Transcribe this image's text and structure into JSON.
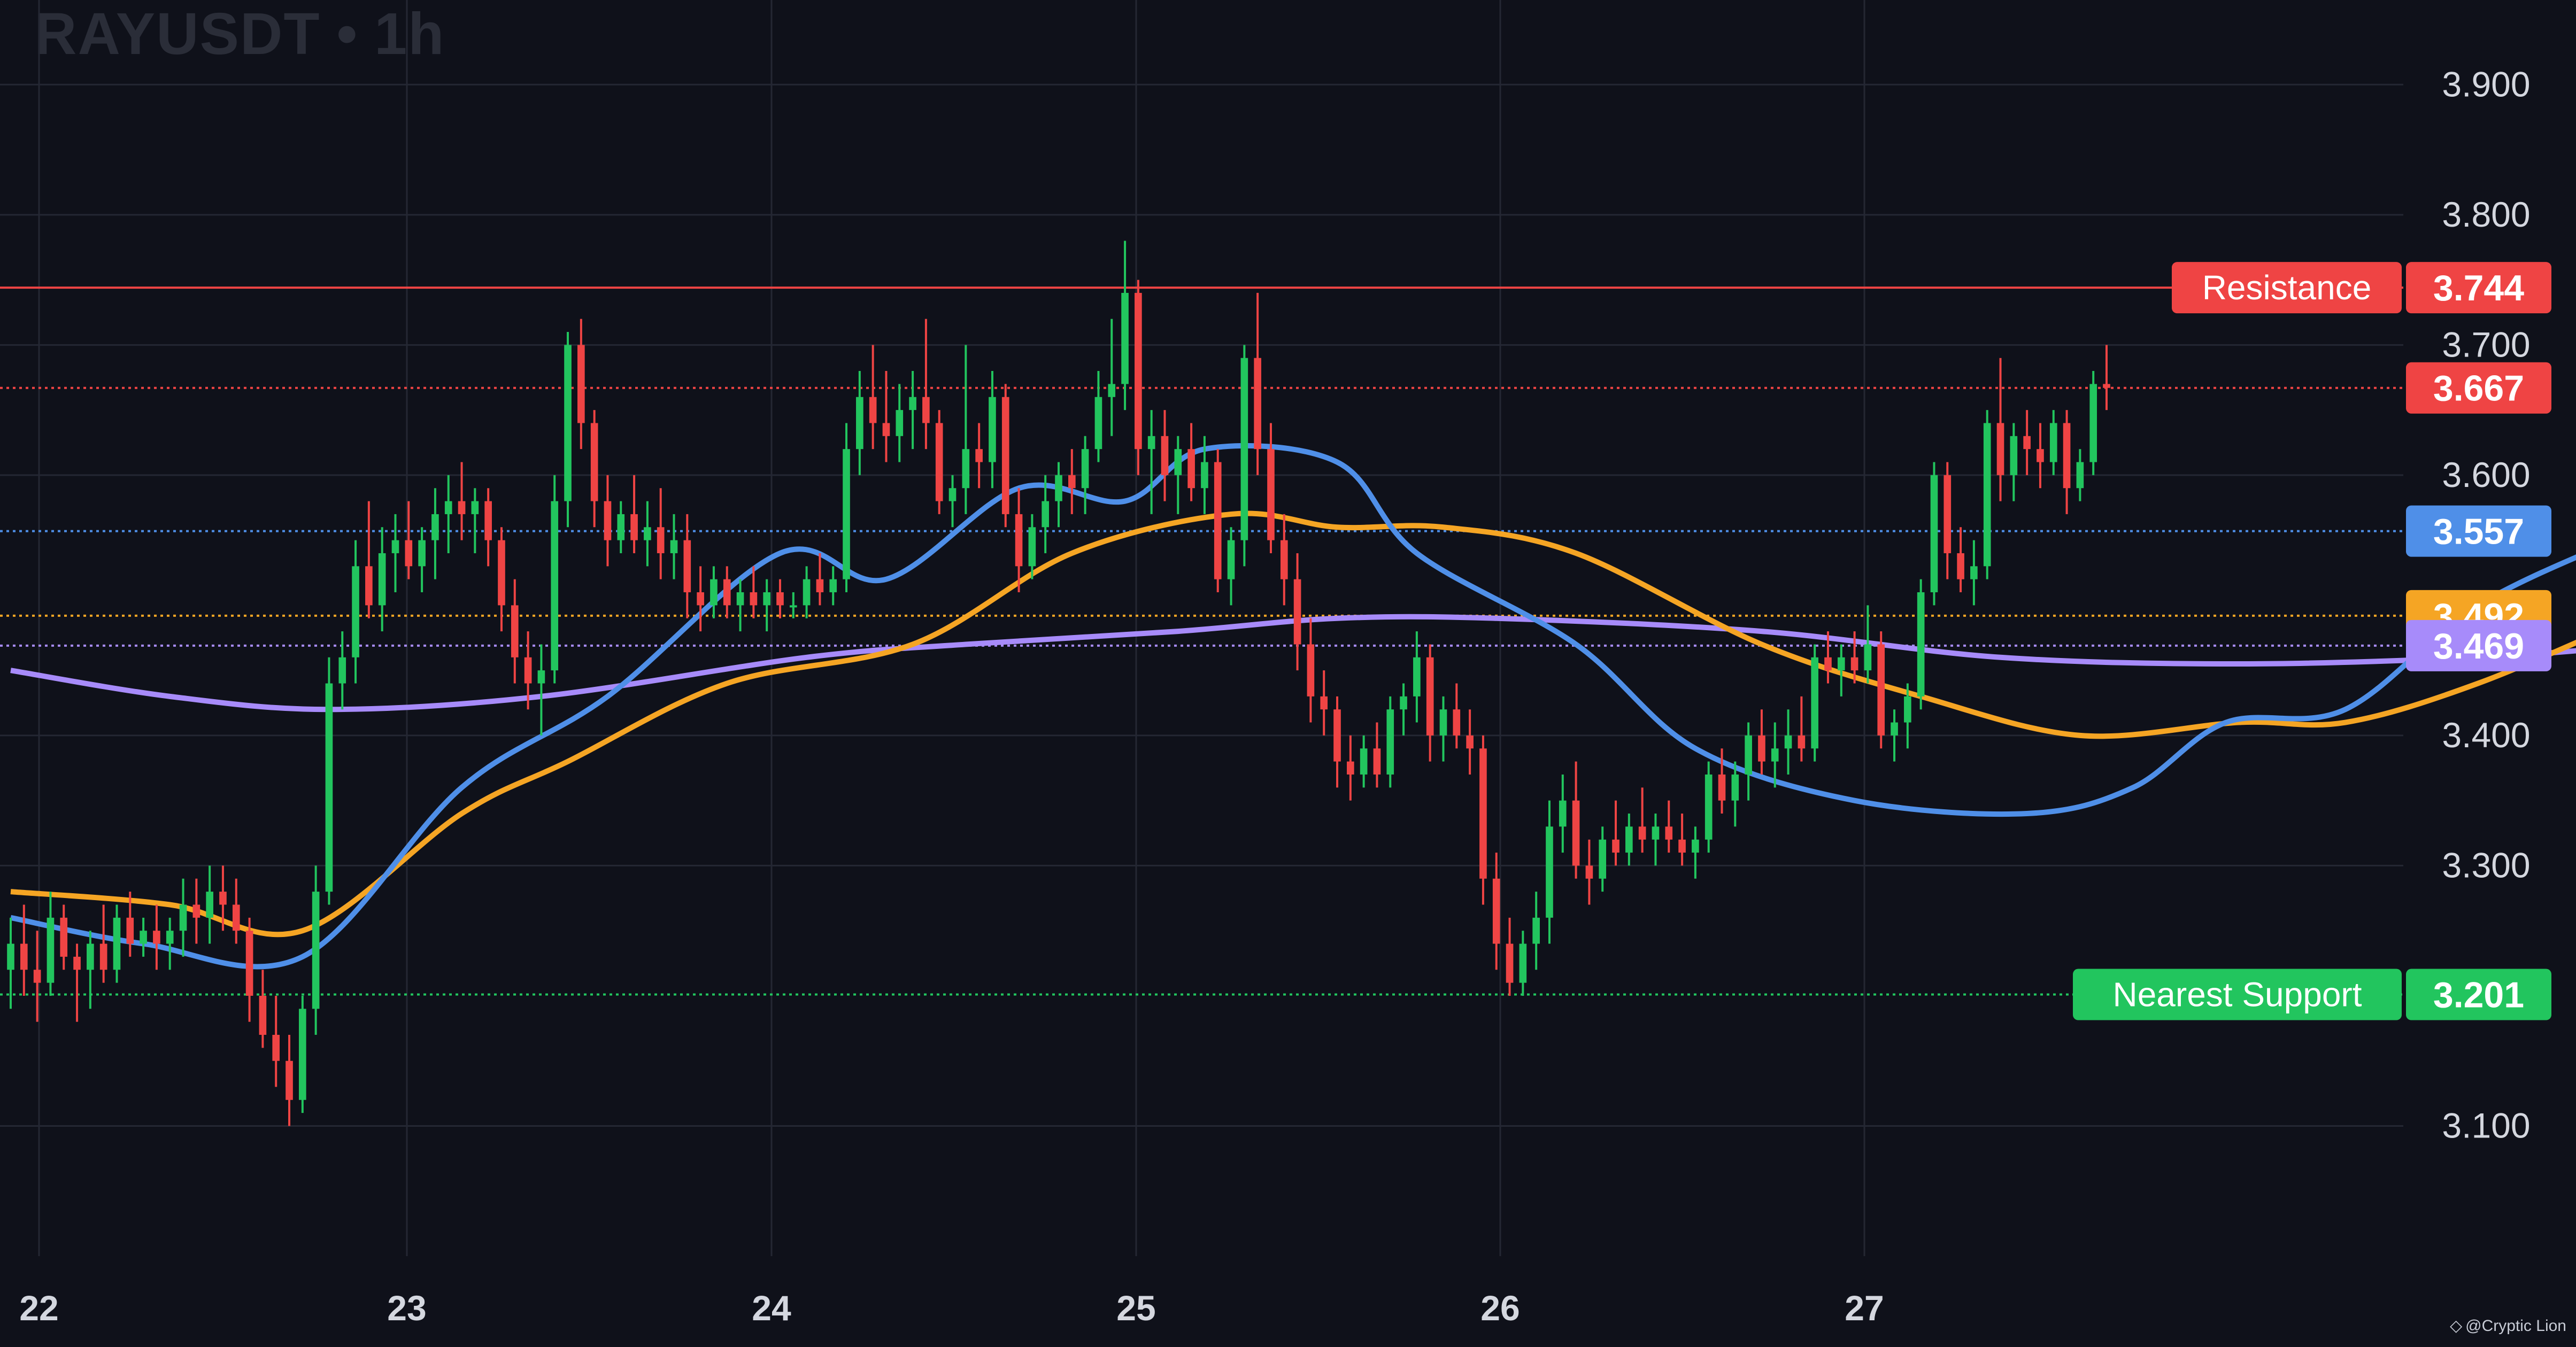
{
  "header": {
    "symbol": "RAYUSDT",
    "separator": "•",
    "interval": "1h"
  },
  "credit": {
    "icon": "tradingview-logo-icon",
    "text": "@Cryptic Lion"
  },
  "colors": {
    "background": "#0f111a",
    "grid": "#242733",
    "axis_text": "#d4d7df",
    "candle_up": "#22c55e",
    "candle_down": "#ef4444",
    "ma_fast": "#4f8fe8",
    "ma_mid": "#f5a524",
    "ma_slow": "#a78bfa",
    "resistance": "#ef4444",
    "support": "#22c55e"
  },
  "chart_data": {
    "type": "candlestick",
    "x_ticks": [
      "22",
      "23",
      "24",
      "25",
      "26",
      "27"
    ],
    "y_ticks": [
      "3.900",
      "3.800",
      "3.700",
      "3.600",
      "3.400",
      "3.300",
      "3.100"
    ],
    "ylim": [
      3.0,
      3.965
    ],
    "grid": true,
    "levels": [
      {
        "label": "Resistance",
        "value": "3.744",
        "color": "#ef4444",
        "style": "solid"
      },
      {
        "label": "",
        "value": "3.667",
        "color": "#ef4444",
        "style": "dotted"
      },
      {
        "label": "",
        "value": "3.557",
        "color": "#4f8fe8",
        "style": "dotted"
      },
      {
        "label": "",
        "value": "3.492",
        "color": "#f5a524",
        "style": "dotted"
      },
      {
        "label": "",
        "value": "3.469",
        "color": "#a78bfa",
        "style": "dotted"
      },
      {
        "label": "Nearest Support",
        "value": "3.201",
        "color": "#22c55e",
        "style": "dotted"
      }
    ],
    "candles": [
      [
        3.22,
        3.26,
        3.19,
        3.24
      ],
      [
        3.24,
        3.27,
        3.2,
        3.22
      ],
      [
        3.22,
        3.25,
        3.18,
        3.21
      ],
      [
        3.21,
        3.28,
        3.2,
        3.26
      ],
      [
        3.26,
        3.27,
        3.22,
        3.23
      ],
      [
        3.23,
        3.24,
        3.18,
        3.22
      ],
      [
        3.22,
        3.25,
        3.19,
        3.24
      ],
      [
        3.24,
        3.27,
        3.21,
        3.22
      ],
      [
        3.22,
        3.27,
        3.21,
        3.26
      ],
      [
        3.26,
        3.28,
        3.23,
        3.24
      ],
      [
        3.24,
        3.26,
        3.23,
        3.25
      ],
      [
        3.25,
        3.27,
        3.22,
        3.24
      ],
      [
        3.24,
        3.26,
        3.22,
        3.25
      ],
      [
        3.25,
        3.29,
        3.23,
        3.27
      ],
      [
        3.27,
        3.29,
        3.24,
        3.26
      ],
      [
        3.26,
        3.3,
        3.24,
        3.28
      ],
      [
        3.28,
        3.3,
        3.25,
        3.27
      ],
      [
        3.27,
        3.29,
        3.24,
        3.25
      ],
      [
        3.25,
        3.26,
        3.18,
        3.2
      ],
      [
        3.2,
        3.22,
        3.16,
        3.17
      ],
      [
        3.17,
        3.2,
        3.13,
        3.15
      ],
      [
        3.15,
        3.17,
        3.1,
        3.12
      ],
      [
        3.12,
        3.2,
        3.11,
        3.19
      ],
      [
        3.19,
        3.3,
        3.17,
        3.28
      ],
      [
        3.28,
        3.46,
        3.27,
        3.44
      ],
      [
        3.44,
        3.48,
        3.42,
        3.46
      ],
      [
        3.46,
        3.55,
        3.44,
        3.53
      ],
      [
        3.53,
        3.58,
        3.49,
        3.5
      ],
      [
        3.5,
        3.56,
        3.48,
        3.54
      ],
      [
        3.54,
        3.57,
        3.51,
        3.55
      ],
      [
        3.55,
        3.58,
        3.52,
        3.53
      ],
      [
        3.53,
        3.56,
        3.51,
        3.55
      ],
      [
        3.55,
        3.59,
        3.52,
        3.57
      ],
      [
        3.57,
        3.6,
        3.54,
        3.58
      ],
      [
        3.58,
        3.61,
        3.55,
        3.57
      ],
      [
        3.57,
        3.59,
        3.54,
        3.58
      ],
      [
        3.58,
        3.59,
        3.53,
        3.55
      ],
      [
        3.55,
        3.56,
        3.48,
        3.5
      ],
      [
        3.5,
        3.52,
        3.44,
        3.46
      ],
      [
        3.46,
        3.48,
        3.42,
        3.44
      ],
      [
        3.44,
        3.47,
        3.4,
        3.45
      ],
      [
        3.45,
        3.6,
        3.44,
        3.58
      ],
      [
        3.58,
        3.71,
        3.56,
        3.7
      ],
      [
        3.7,
        3.72,
        3.62,
        3.64
      ],
      [
        3.64,
        3.65,
        3.56,
        3.58
      ],
      [
        3.58,
        3.6,
        3.53,
        3.55
      ],
      [
        3.55,
        3.58,
        3.54,
        3.57
      ],
      [
        3.57,
        3.6,
        3.54,
        3.55
      ],
      [
        3.55,
        3.58,
        3.53,
        3.56
      ],
      [
        3.56,
        3.59,
        3.52,
        3.54
      ],
      [
        3.54,
        3.57,
        3.52,
        3.55
      ],
      [
        3.55,
        3.57,
        3.49,
        3.51
      ],
      [
        3.51,
        3.53,
        3.48,
        3.5
      ],
      [
        3.5,
        3.53,
        3.49,
        3.52
      ],
      [
        3.52,
        3.53,
        3.49,
        3.5
      ],
      [
        3.5,
        3.52,
        3.48,
        3.51
      ],
      [
        3.51,
        3.53,
        3.49,
        3.5
      ],
      [
        3.5,
        3.52,
        3.48,
        3.51
      ],
      [
        3.51,
        3.52,
        3.49,
        3.5
      ],
      [
        3.5,
        3.51,
        3.49,
        3.5
      ],
      [
        3.5,
        3.53,
        3.49,
        3.52
      ],
      [
        3.52,
        3.54,
        3.5,
        3.51
      ],
      [
        3.51,
        3.53,
        3.5,
        3.52
      ],
      [
        3.52,
        3.64,
        3.51,
        3.62
      ],
      [
        3.62,
        3.68,
        3.6,
        3.66
      ],
      [
        3.66,
        3.7,
        3.62,
        3.64
      ],
      [
        3.64,
        3.68,
        3.61,
        3.63
      ],
      [
        3.63,
        3.67,
        3.61,
        3.65
      ],
      [
        3.65,
        3.68,
        3.62,
        3.66
      ],
      [
        3.66,
        3.72,
        3.62,
        3.64
      ],
      [
        3.64,
        3.65,
        3.57,
        3.58
      ],
      [
        3.58,
        3.6,
        3.56,
        3.59
      ],
      [
        3.59,
        3.7,
        3.57,
        3.62
      ],
      [
        3.62,
        3.64,
        3.59,
        3.61
      ],
      [
        3.61,
        3.68,
        3.59,
        3.66
      ],
      [
        3.66,
        3.67,
        3.56,
        3.57
      ],
      [
        3.57,
        3.59,
        3.51,
        3.53
      ],
      [
        3.53,
        3.57,
        3.52,
        3.56
      ],
      [
        3.56,
        3.6,
        3.54,
        3.58
      ],
      [
        3.58,
        3.61,
        3.56,
        3.6
      ],
      [
        3.6,
        3.62,
        3.57,
        3.59
      ],
      [
        3.59,
        3.63,
        3.57,
        3.62
      ],
      [
        3.62,
        3.68,
        3.61,
        3.66
      ],
      [
        3.66,
        3.72,
        3.63,
        3.67
      ],
      [
        3.67,
        3.78,
        3.65,
        3.74
      ],
      [
        3.74,
        3.75,
        3.6,
        3.62
      ],
      [
        3.62,
        3.65,
        3.57,
        3.63
      ],
      [
        3.63,
        3.65,
        3.58,
        3.6
      ],
      [
        3.6,
        3.63,
        3.57,
        3.62
      ],
      [
        3.62,
        3.64,
        3.58,
        3.59
      ],
      [
        3.59,
        3.63,
        3.57,
        3.61
      ],
      [
        3.61,
        3.62,
        3.51,
        3.52
      ],
      [
        3.52,
        3.56,
        3.5,
        3.55
      ],
      [
        3.55,
        3.7,
        3.53,
        3.69
      ],
      [
        3.69,
        3.74,
        3.6,
        3.62
      ],
      [
        3.62,
        3.64,
        3.54,
        3.55
      ],
      [
        3.55,
        3.57,
        3.5,
        3.52
      ],
      [
        3.52,
        3.54,
        3.45,
        3.47
      ],
      [
        3.47,
        3.49,
        3.41,
        3.43
      ],
      [
        3.43,
        3.45,
        3.4,
        3.42
      ],
      [
        3.42,
        3.43,
        3.36,
        3.38
      ],
      [
        3.38,
        3.4,
        3.35,
        3.37
      ],
      [
        3.37,
        3.4,
        3.36,
        3.39
      ],
      [
        3.39,
        3.41,
        3.36,
        3.37
      ],
      [
        3.37,
        3.43,
        3.36,
        3.42
      ],
      [
        3.42,
        3.44,
        3.4,
        3.43
      ],
      [
        3.43,
        3.48,
        3.41,
        3.46
      ],
      [
        3.46,
        3.47,
        3.38,
        3.4
      ],
      [
        3.4,
        3.43,
        3.38,
        3.42
      ],
      [
        3.42,
        3.44,
        3.39,
        3.4
      ],
      [
        3.4,
        3.42,
        3.37,
        3.39
      ],
      [
        3.39,
        3.4,
        3.27,
        3.29
      ],
      [
        3.29,
        3.31,
        3.22,
        3.24
      ],
      [
        3.24,
        3.26,
        3.2,
        3.21
      ],
      [
        3.21,
        3.25,
        3.2,
        3.24
      ],
      [
        3.24,
        3.28,
        3.22,
        3.26
      ],
      [
        3.26,
        3.35,
        3.24,
        3.33
      ],
      [
        3.33,
        3.37,
        3.31,
        3.35
      ],
      [
        3.35,
        3.38,
        3.29,
        3.3
      ],
      [
        3.3,
        3.32,
        3.27,
        3.29
      ],
      [
        3.29,
        3.33,
        3.28,
        3.32
      ],
      [
        3.32,
        3.35,
        3.3,
        3.31
      ],
      [
        3.31,
        3.34,
        3.3,
        3.33
      ],
      [
        3.33,
        3.36,
        3.31,
        3.32
      ],
      [
        3.32,
        3.34,
        3.3,
        3.33
      ],
      [
        3.33,
        3.35,
        3.31,
        3.32
      ],
      [
        3.32,
        3.34,
        3.3,
        3.31
      ],
      [
        3.31,
        3.33,
        3.29,
        3.32
      ],
      [
        3.32,
        3.38,
        3.31,
        3.37
      ],
      [
        3.37,
        3.39,
        3.34,
        3.35
      ],
      [
        3.35,
        3.38,
        3.33,
        3.37
      ],
      [
        3.37,
        3.41,
        3.35,
        3.4
      ],
      [
        3.4,
        3.42,
        3.37,
        3.38
      ],
      [
        3.38,
        3.41,
        3.36,
        3.39
      ],
      [
        3.39,
        3.42,
        3.37,
        3.4
      ],
      [
        3.4,
        3.43,
        3.38,
        3.39
      ],
      [
        3.39,
        3.47,
        3.38,
        3.46
      ],
      [
        3.46,
        3.48,
        3.44,
        3.45
      ],
      [
        3.45,
        3.47,
        3.43,
        3.46
      ],
      [
        3.46,
        3.48,
        3.44,
        3.45
      ],
      [
        3.45,
        3.5,
        3.44,
        3.47
      ],
      [
        3.47,
        3.48,
        3.39,
        3.4
      ],
      [
        3.4,
        3.42,
        3.38,
        3.41
      ],
      [
        3.41,
        3.44,
        3.39,
        3.43
      ],
      [
        3.43,
        3.52,
        3.42,
        3.51
      ],
      [
        3.51,
        3.61,
        3.5,
        3.6
      ],
      [
        3.6,
        3.61,
        3.52,
        3.54
      ],
      [
        3.54,
        3.56,
        3.51,
        3.52
      ],
      [
        3.52,
        3.55,
        3.5,
        3.53
      ],
      [
        3.53,
        3.65,
        3.52,
        3.64
      ],
      [
        3.64,
        3.69,
        3.58,
        3.6
      ],
      [
        3.6,
        3.64,
        3.58,
        3.63
      ],
      [
        3.63,
        3.65,
        3.6,
        3.62
      ],
      [
        3.62,
        3.64,
        3.59,
        3.61
      ],
      [
        3.61,
        3.65,
        3.6,
        3.64
      ],
      [
        3.64,
        3.65,
        3.57,
        3.59
      ],
      [
        3.59,
        3.62,
        3.58,
        3.61
      ],
      [
        3.61,
        3.68,
        3.6,
        3.67
      ],
      [
        3.67,
        3.7,
        3.65,
        3.667
      ]
    ],
    "ma_fast": [
      [
        0,
        3.26
      ],
      [
        10,
        3.24
      ],
      [
        22,
        3.23
      ],
      [
        34,
        3.36
      ],
      [
        45,
        3.43
      ],
      [
        58,
        3.54
      ],
      [
        66,
        3.52
      ],
      [
        76,
        3.59
      ],
      [
        84,
        3.58
      ],
      [
        90,
        3.62
      ],
      [
        100,
        3.61
      ],
      [
        106,
        3.54
      ],
      [
        118,
        3.47
      ],
      [
        127,
        3.39
      ],
      [
        139,
        3.35
      ],
      [
        152,
        3.34
      ],
      [
        160,
        3.36
      ],
      [
        167,
        3.41
      ],
      [
        176,
        3.42
      ],
      [
        186,
        3.5
      ],
      [
        198,
        3.557
      ]
    ],
    "ma_mid": [
      [
        0,
        3.28
      ],
      [
        12,
        3.27
      ],
      [
        22,
        3.25
      ],
      [
        34,
        3.34
      ],
      [
        42,
        3.38
      ],
      [
        54,
        3.44
      ],
      [
        68,
        3.47
      ],
      [
        80,
        3.54
      ],
      [
        92,
        3.57
      ],
      [
        100,
        3.56
      ],
      [
        108,
        3.56
      ],
      [
        118,
        3.54
      ],
      [
        132,
        3.47
      ],
      [
        144,
        3.43
      ],
      [
        156,
        3.4
      ],
      [
        168,
        3.41
      ],
      [
        176,
        3.41
      ],
      [
        186,
        3.44
      ],
      [
        198,
        3.492
      ]
    ],
    "ma_slow": [
      [
        0,
        3.45
      ],
      [
        12,
        3.43
      ],
      [
        24,
        3.42
      ],
      [
        40,
        3.43
      ],
      [
        60,
        3.46
      ],
      [
        72,
        3.47
      ],
      [
        88,
        3.48
      ],
      [
        100,
        3.49
      ],
      [
        112,
        3.49
      ],
      [
        132,
        3.48
      ],
      [
        150,
        3.46
      ],
      [
        168,
        3.455
      ],
      [
        186,
        3.46
      ],
      [
        198,
        3.469
      ]
    ]
  }
}
